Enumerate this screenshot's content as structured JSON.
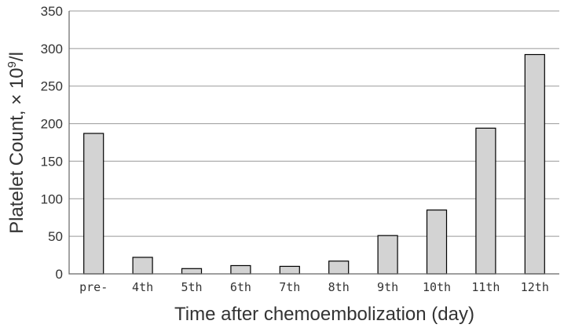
{
  "chart_data": {
    "type": "bar",
    "categories": [
      "pre-",
      "4th",
      "5th",
      "6th",
      "7th",
      "8th",
      "9th",
      "10th",
      "11th",
      "12th"
    ],
    "values": [
      187,
      22,
      7,
      11,
      10,
      17,
      51,
      85,
      194,
      292
    ],
    "xlabel": "Time after chemoembolization (day)",
    "ylabel": "Platelet Count, × 10^9/l",
    "ylabel_parts": {
      "main": "Platelet Count, × 10",
      "sup": "9",
      "unit": "/l"
    },
    "ylim": [
      0,
      350
    ],
    "yticks": [
      0,
      50,
      100,
      150,
      200,
      250,
      300,
      350
    ],
    "grid": true,
    "colors": {
      "bar_fill": "#d3d3d3",
      "bar_stroke": "#000000",
      "grid": "#999999"
    }
  }
}
